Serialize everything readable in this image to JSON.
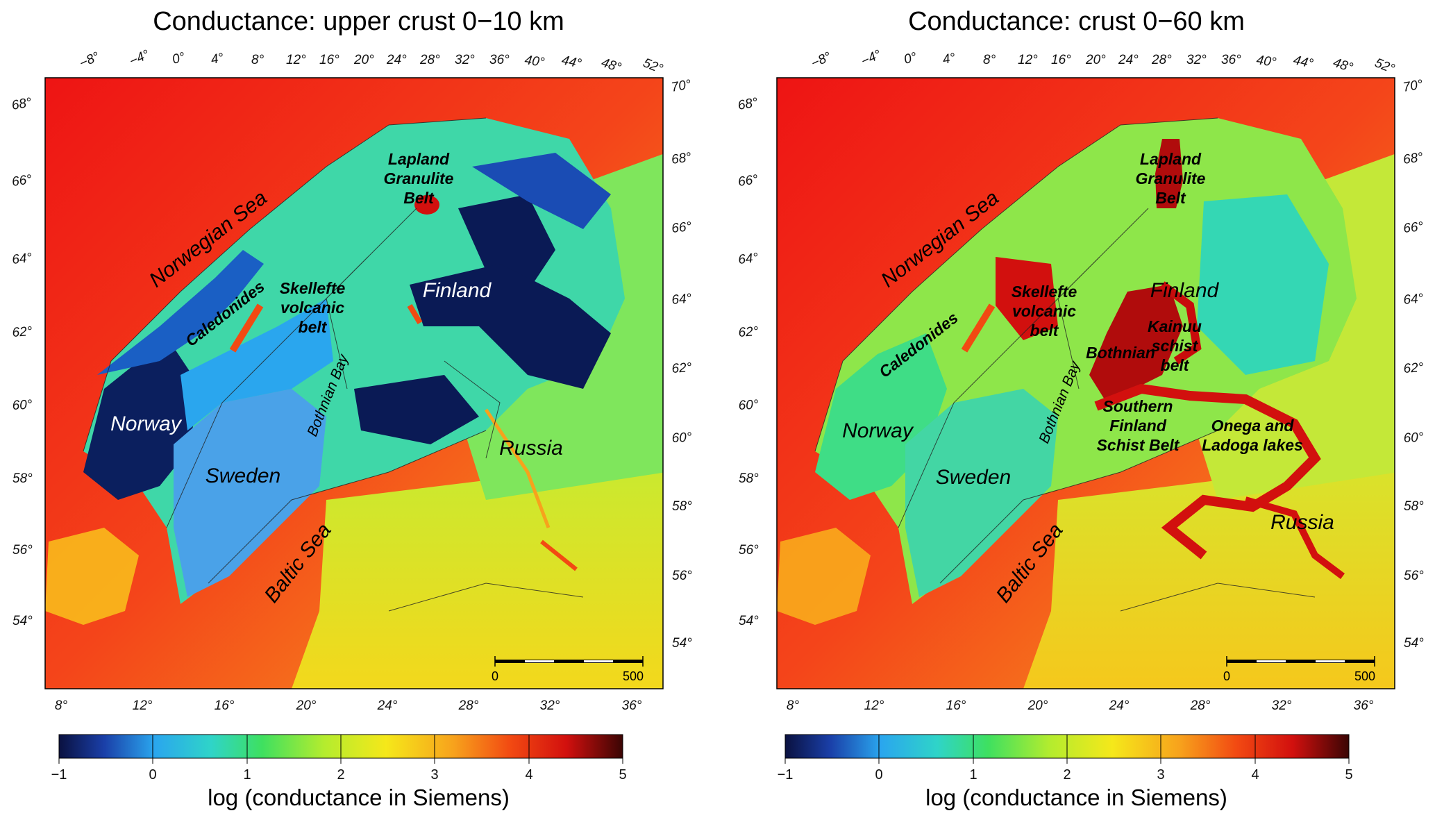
{
  "colors": {
    "scale": [
      "#0a1140",
      "#1a3fa8",
      "#2aa6ee",
      "#2fd4c8",
      "#3ee060",
      "#b4ec2e",
      "#f5e81a",
      "#f7a21c",
      "#f24a12",
      "#d2100e",
      "#3a0504"
    ],
    "ocean": "#f0231a",
    "ocean_far": "#ee1414",
    "land_base": "#7ae64a",
    "coastline": "#222222"
  },
  "colorbar": {
    "ticks": [
      "−1",
      "0",
      "1",
      "2",
      "3",
      "4",
      "5"
    ],
    "label": "log (conductance in Siemens)"
  },
  "axes": {
    "top_lon": [
      "−8°",
      "−4°",
      "0°",
      "4°",
      "8°",
      "12°",
      "16°",
      "20°",
      "24°",
      "28°",
      "32°",
      "36°",
      "40°",
      "44°",
      "48°",
      "52°"
    ],
    "bottom_lon": [
      "8°",
      "12°",
      "16°",
      "20°",
      "24°",
      "28°",
      "32°",
      "36°"
    ],
    "left_lat": [
      "68°",
      "66°",
      "64°",
      "62°",
      "60°",
      "58°",
      "56°",
      "54°"
    ],
    "right_lat": [
      "70°",
      "68°",
      "66°",
      "64°",
      "62°",
      "60°",
      "58°",
      "56°",
      "54°"
    ]
  },
  "scale_bar": {
    "start": "0",
    "end": "500"
  },
  "panels": [
    {
      "title": "Conductance: upper crust 0−10 km",
      "labels": {
        "norwegian_sea": "Norwegian Sea",
        "lapland": [
          "Lapland",
          "Granulite",
          "Belt"
        ],
        "caledonides": "Caledonides",
        "skellefte": [
          "Skellefte",
          "volcanic",
          "belt"
        ],
        "finland": "Finland",
        "bothnian_bay": "Bothnian Bay",
        "norway": "Norway",
        "sweden": "Sweden",
        "russia": "Russia",
        "baltic_sea": "Baltic Sea"
      },
      "fills": {
        "norway": "#0b1f5e",
        "sweden": "#4aa2e8",
        "north": "#3fd7a8",
        "finland_deep": "#0a1a55",
        "finland_mid": "#2bb4ee",
        "russia": "#7fe65c",
        "baltic_states": "#b6ea34"
      }
    },
    {
      "title": "Conductance: crust 0−60 km",
      "labels": {
        "norwegian_sea": "Norwegian Sea",
        "lapland": [
          "Lapland",
          "Granulite",
          "Belt"
        ],
        "caledonides": "Caledonides",
        "skellefte": [
          "Skellefte",
          "volcanic",
          "belt"
        ],
        "finland": "Finland",
        "kainuu": [
          "Kainuu",
          "schist",
          "belt"
        ],
        "bothnian": "Bothnian",
        "southern_finland": [
          "Southern",
          "Finland",
          "Schist Belt"
        ],
        "onega": [
          "Onega and",
          "Ladoga lakes"
        ],
        "bothnian_bay": "Bothnian Bay",
        "norway": "Norway",
        "sweden": "Sweden",
        "russia": "Russia",
        "baltic_sea": "Baltic Sea"
      },
      "fills": {
        "norway": "#3fdd86",
        "sweden": "#43d6a4",
        "north": "#8ee64a",
        "finland_deep": "#34d7b4",
        "finland_mid": "#3ed8b0",
        "russia": "#c4e838",
        "baltic_states": "#d8e42c",
        "anomaly": "#c80c0c"
      }
    }
  ]
}
